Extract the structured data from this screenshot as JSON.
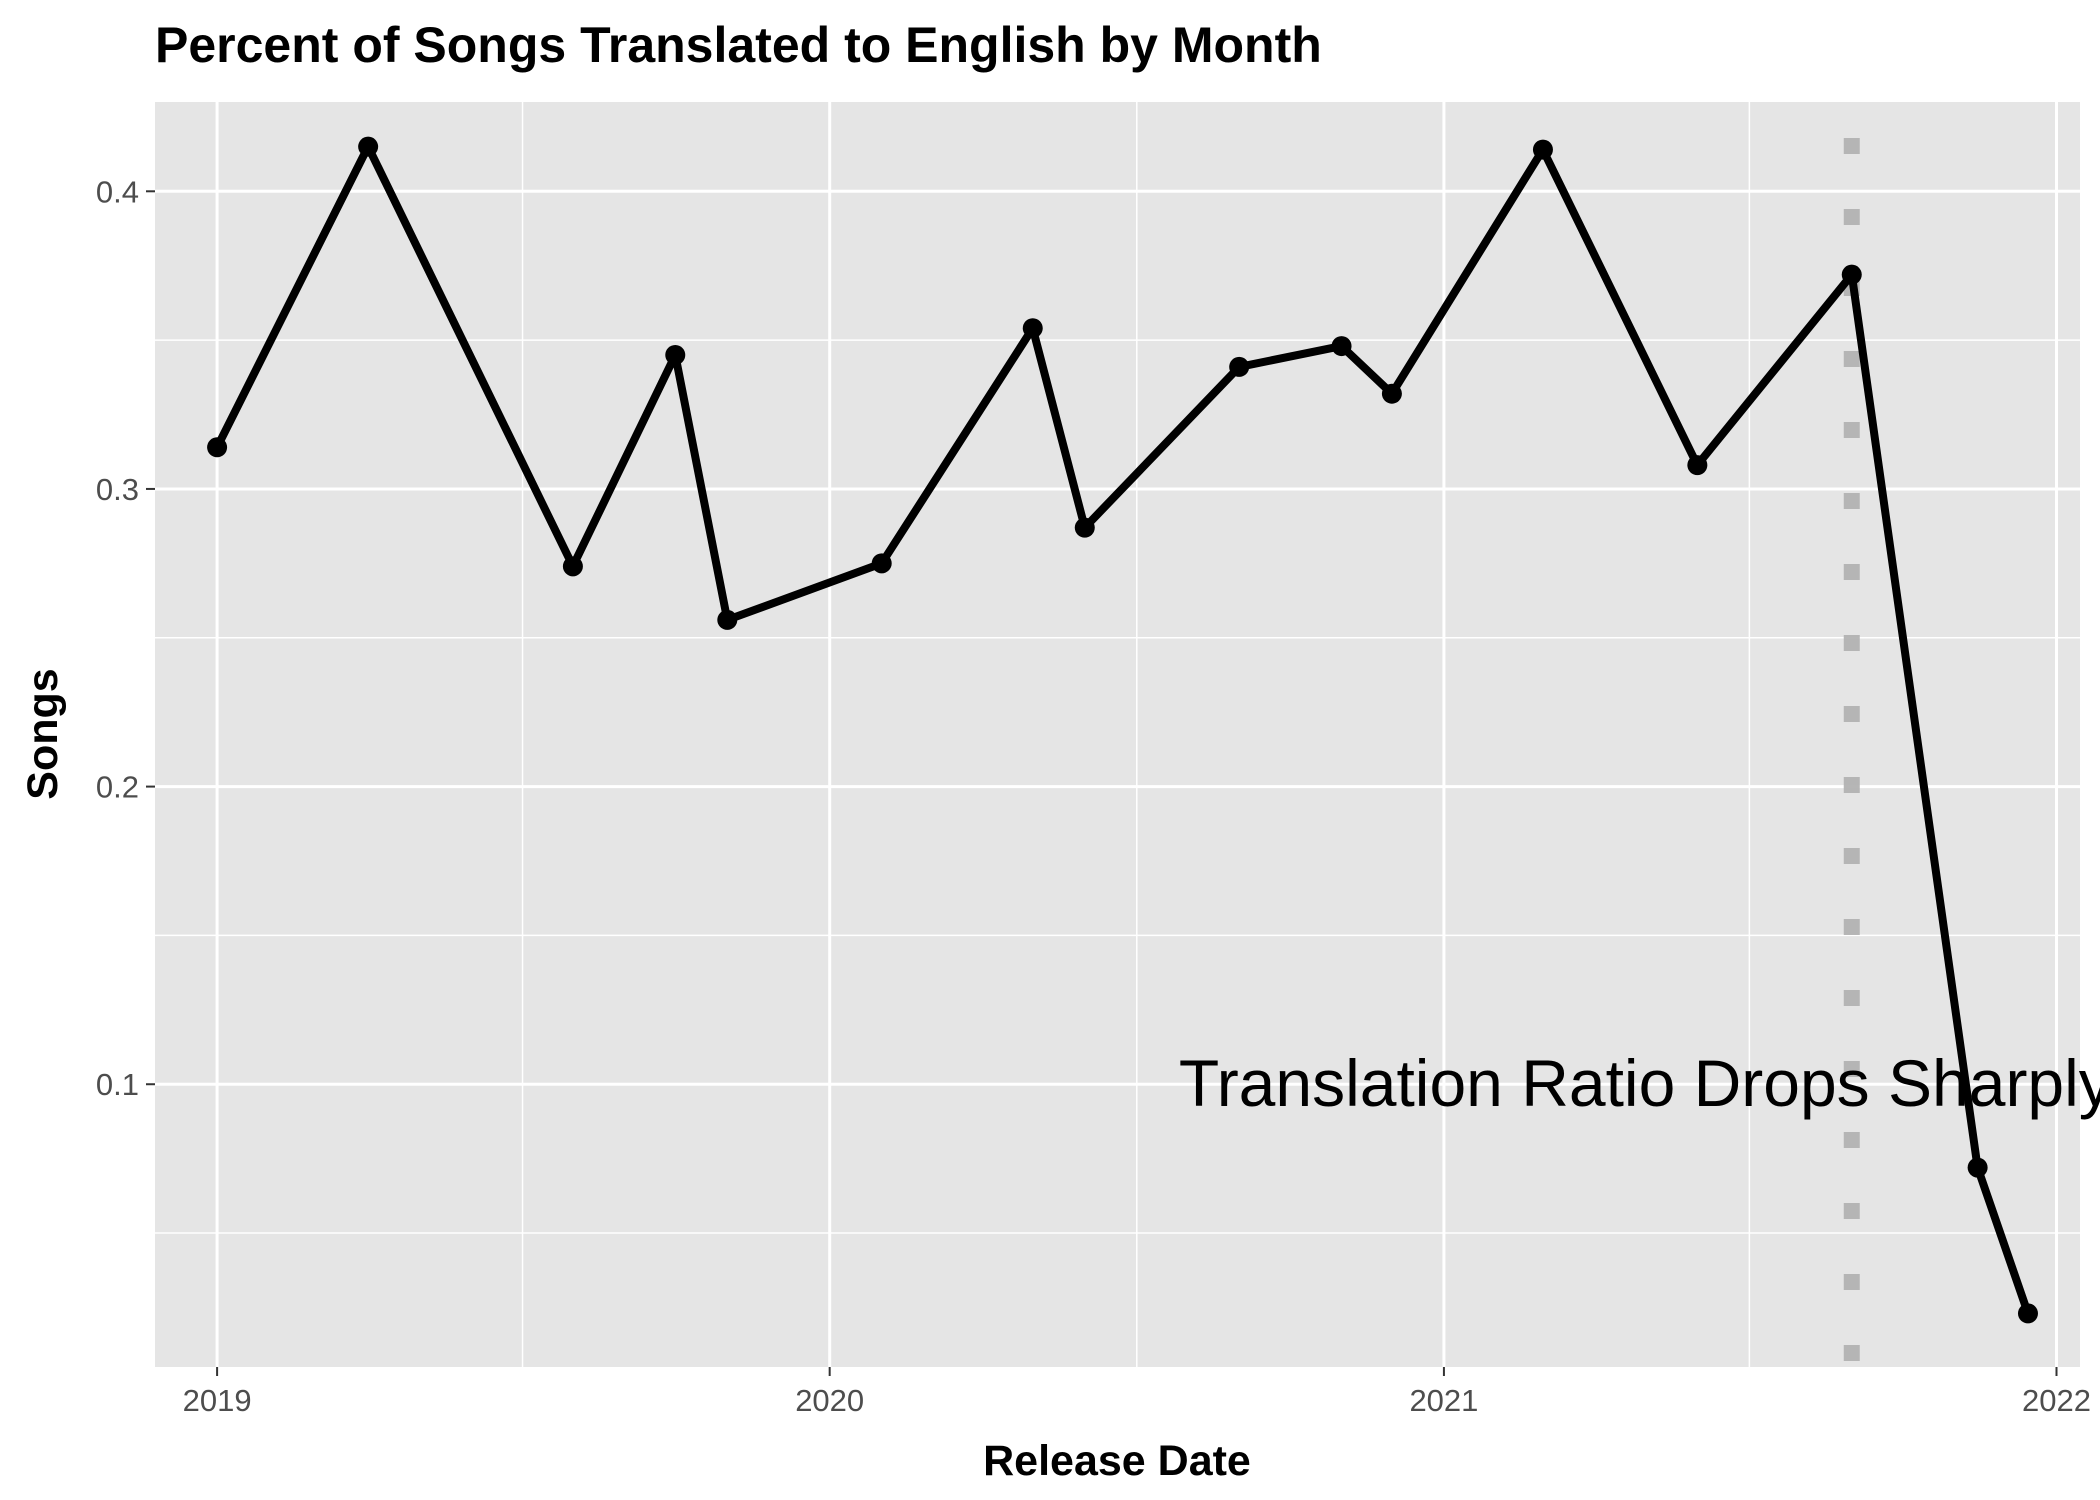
{
  "chart_data": {
    "type": "line",
    "title": "Percent of Songs Translated to English by Month",
    "xlabel": "Release Date",
    "ylabel": "Songs",
    "x_ticks": [
      "2019",
      "2020",
      "2021",
      "2022"
    ],
    "y_ticks": [
      "0.1",
      "0.2",
      "0.3",
      "0.4"
    ],
    "xlim": [
      "2018-11-25",
      "2022-01-15"
    ],
    "ylim": [
      0.005,
      0.43
    ],
    "grid": true,
    "series": [
      {
        "color": "#000000",
        "points": [
          {
            "x": "2019-01-01",
            "y": 0.314
          },
          {
            "x": "2019-04-01",
            "y": 0.415
          },
          {
            "x": "2019-08-01",
            "y": 0.274
          },
          {
            "x": "2019-10-01",
            "y": 0.345
          },
          {
            "x": "2019-11-01",
            "y": 0.256
          },
          {
            "x": "2020-02-01",
            "y": 0.275
          },
          {
            "x": "2020-05-01",
            "y": 0.354
          },
          {
            "x": "2020-06-01",
            "y": 0.287
          },
          {
            "x": "2020-09-01",
            "y": 0.341
          },
          {
            "x": "2020-11-01",
            "y": 0.348
          },
          {
            "x": "2020-12-01",
            "y": 0.332
          },
          {
            "x": "2021-03-01",
            "y": 0.414
          },
          {
            "x": "2021-06-01",
            "y": 0.308
          },
          {
            "x": "2021-09-01",
            "y": 0.372
          },
          {
            "x": "2021-11-15",
            "y": 0.072
          },
          {
            "x": "2021-12-15",
            "y": 0.023
          }
        ]
      }
    ],
    "reference_line": {
      "x": "2021-09-01",
      "style": "dotted",
      "color": "#b3b3b3"
    },
    "annotation": {
      "text": "Translation Ratio Drops Sharply",
      "x": "2021-05-01",
      "y": 0.1
    }
  }
}
